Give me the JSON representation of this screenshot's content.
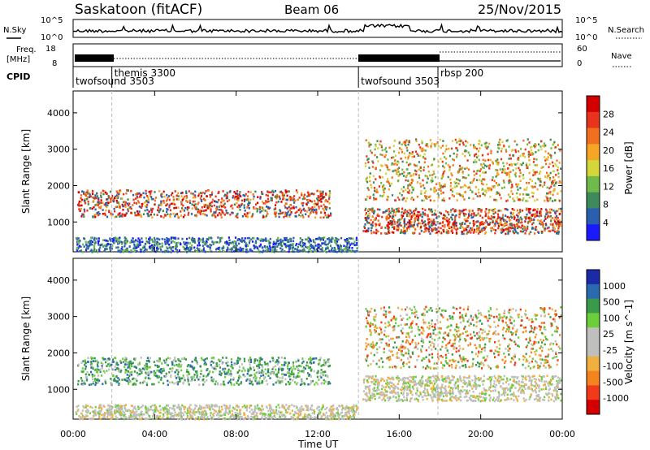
{
  "header": {
    "title": "Saskatoon (fitACF)",
    "beam": "Beam 06",
    "date": "25/Nov/2015"
  },
  "noise_panel": {
    "left_label": "N.Sky",
    "right_label": "N.Search",
    "left_ticks": [
      "10^5",
      "10^0"
    ],
    "right_ticks": [
      "10^5",
      "10^0"
    ]
  },
  "freq_panel": {
    "left_label_1": "Freq.",
    "left_label_2": "[MHz]",
    "right_label": "Nave",
    "left_ticks": [
      "18",
      "8"
    ],
    "right_ticks": [
      "60",
      "0"
    ]
  },
  "cpid": {
    "label": "CPID",
    "segments": [
      {
        "name": "twofsound 3503",
        "start": 0.0
      },
      {
        "name": "themis 3300",
        "start": 1.9
      },
      {
        "name": "twofsound 3503",
        "start": 14.0
      },
      {
        "name": "rbsp 200",
        "start": 17.9
      }
    ]
  },
  "colors": {
    "power": [
      "#1a1aff",
      "#2a5fb0",
      "#3e8a5a",
      "#6fba4a",
      "#d4d63a",
      "#f5a623",
      "#f07020",
      "#e8341c",
      "#d40000"
    ],
    "velocity": [
      "#d40000",
      "#f03a1a",
      "#f5841f",
      "#f0b040",
      "#bfbfbd",
      "#bfbfbd",
      "#6ccf3a",
      "#3a9a4a",
      "#2a6ab0",
      "#1a2aa8"
    ]
  },
  "chart_data": [
    {
      "type": "heatmap",
      "title": "Power",
      "xlabel": "Time UT",
      "ylabel": "Slant Range [km]",
      "xlim": [
        0,
        24
      ],
      "ylim": [
        180,
        4600
      ],
      "x_ticks": [
        "00:00",
        "04:00",
        "08:00",
        "12:00",
        "16:00",
        "20:00",
        "00:00"
      ],
      "y_ticks": [
        "1000",
        "2000",
        "3000",
        "4000"
      ],
      "colorbar_label": "Power [dB]",
      "colorbar_ticks": [
        "4",
        "8",
        "12",
        "16",
        "20",
        "24",
        "28"
      ],
      "bands": [
        {
          "x": [
            0.2,
            12.6
          ],
          "y": [
            1150,
            1900
          ],
          "level": "high"
        },
        {
          "x": [
            0.1,
            13.9
          ],
          "y": [
            200,
            600
          ],
          "level": "low"
        },
        {
          "x": [
            14.2,
            23.9
          ],
          "y": [
            700,
            1400
          ],
          "level": "high"
        },
        {
          "x": [
            14.3,
            23.9
          ],
          "y": [
            1600,
            3300
          ],
          "level": "mid"
        }
      ]
    },
    {
      "type": "heatmap",
      "title": "Velocity",
      "xlabel": "Time UT",
      "ylabel": "Slant Range [km]",
      "xlim": [
        0,
        24
      ],
      "ylim": [
        180,
        4600
      ],
      "x_ticks": [
        "00:00",
        "04:00",
        "08:00",
        "12:00",
        "16:00",
        "20:00",
        "00:00"
      ],
      "y_ticks": [
        "1000",
        "2000",
        "3000",
        "4000"
      ],
      "colorbar_label": "Velocity [m s^-1]",
      "colorbar_ticks": [
        "1000",
        "500",
        "100",
        "25",
        "-25",
        "-100",
        "-500",
        "-1000"
      ],
      "bands": [
        {
          "x": [
            0.2,
            12.6
          ],
          "y": [
            1150,
            1900
          ],
          "level": "positive"
        },
        {
          "x": [
            0.1,
            13.9
          ],
          "y": [
            200,
            600
          ],
          "level": "near-zero"
        },
        {
          "x": [
            14.2,
            23.9
          ],
          "y": [
            700,
            1400
          ],
          "level": "near-zero"
        },
        {
          "x": [
            14.3,
            23.9
          ],
          "y": [
            1600,
            3300
          ],
          "level": "mixed"
        }
      ]
    }
  ]
}
